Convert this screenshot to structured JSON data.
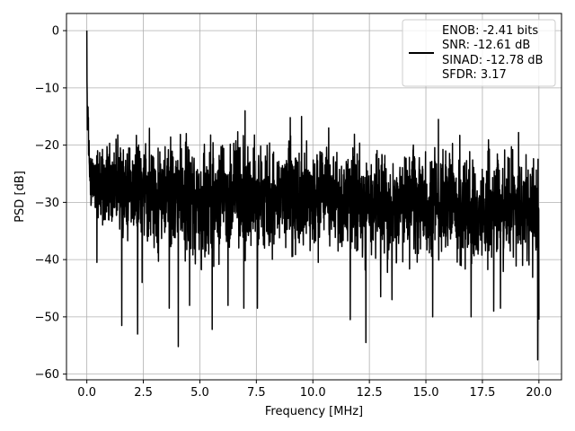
{
  "chart_data": {
    "type": "line",
    "xlabel": "Frequency [MHz]",
    "ylabel": "PSD [dB]",
    "xlim": [
      -0.9,
      21.0
    ],
    "ylim": [
      -61.0,
      3.0
    ],
    "xticks": [
      0.0,
      2.5,
      5.0,
      7.5,
      10.0,
      12.5,
      15.0,
      17.5,
      20.0
    ],
    "xtick_labels": [
      "0.0",
      "2.5",
      "5.0",
      "7.5",
      "10.0",
      "12.5",
      "15.0",
      "17.5",
      "20.0"
    ],
    "yticks": [
      0,
      -10,
      -20,
      -30,
      -40,
      -50,
      -60
    ],
    "ytick_labels": [
      "0",
      "−10",
      "−20",
      "−30",
      "−40",
      "−50",
      "−60"
    ],
    "grid": true,
    "legend_position": "top-right",
    "series": [
      {
        "color": "#000000",
        "x": [
          0.0,
          0.02,
          0.05,
          0.08,
          0.12,
          0.2,
          0.35,
          0.5,
          1.0,
          1.5,
          2.0,
          2.3,
          2.5,
          3.0,
          3.5,
          3.7,
          4.0,
          4.5,
          5.0,
          5.5,
          6.0,
          6.5,
          7.0,
          7.5,
          8.0,
          8.5,
          9.0,
          9.5,
          10.0,
          10.5,
          11.0,
          11.5,
          12.0,
          12.3,
          12.5,
          13.0,
          13.5,
          14.0,
          14.5,
          15.0,
          15.3,
          15.5,
          16.0,
          16.5,
          17.0,
          17.5,
          18.0,
          18.5,
          19.0,
          19.5,
          19.95,
          20.0
        ],
        "upper": [
          0.0,
          -4.0,
          -10.0,
          -14.0,
          -17.0,
          -18.0,
          -19.0,
          -17.5,
          -16.0,
          -16.5,
          -17.0,
          -16.0,
          -17.0,
          -15.5,
          -17.0,
          -16.0,
          -17.5,
          -16.0,
          -17.0,
          -16.0,
          -17.0,
          -16.5,
          -17.0,
          -16.0,
          -17.5,
          -14.0,
          -17.0,
          -17.5,
          -17.0,
          -16.0,
          -19.0,
          -18.0,
          -17.0,
          -18.0,
          -18.5,
          -19.0,
          -19.0,
          -18.0,
          -17.0,
          -18.0,
          -19.5,
          -15.5,
          -19.0,
          -18.0,
          -19.5,
          -18.5,
          -18.0,
          -19.0,
          -18.0,
          -19.0,
          -19.5,
          -22.0
        ],
        "lower": [
          -10.0,
          -25.0,
          -22.0,
          -27.0,
          -30.0,
          -34.0,
          -32.0,
          -36.0,
          -37.0,
          -38.0,
          -40.0,
          -41.0,
          -40.0,
          -41.0,
          -40.0,
          -40.0,
          -42.0,
          -41.0,
          -44.0,
          -42.0,
          -41.0,
          -41.0,
          -42.0,
          -42.0,
          -43.0,
          -41.0,
          -42.0,
          -41.0,
          -41.0,
          -41.0,
          -42.0,
          -43.0,
          -42.0,
          -43.0,
          -42.0,
          -43.0,
          -43.0,
          -44.0,
          -42.0,
          -43.0,
          -42.0,
          -43.0,
          -43.0,
          -43.0,
          -44.0,
          -44.0,
          -43.0,
          -44.0,
          -44.0,
          -43.0,
          -45.0,
          -35.0
        ],
        "spikes_down": [
          [
            0.45,
            -40.5
          ],
          [
            1.55,
            -51.5
          ],
          [
            2.25,
            -53.0
          ],
          [
            2.45,
            -44.0
          ],
          [
            3.65,
            -48.5
          ],
          [
            4.05,
            -55.2
          ],
          [
            4.55,
            -48.0
          ],
          [
            5.55,
            -52.2
          ],
          [
            6.25,
            -48.0
          ],
          [
            6.95,
            -48.5
          ],
          [
            7.55,
            -48.5
          ],
          [
            9.5,
            -47.5
          ],
          [
            11.65,
            -50.5
          ],
          [
            12.35,
            -54.5
          ],
          [
            13.0,
            -46.5
          ],
          [
            13.5,
            -47.0
          ],
          [
            15.3,
            -50.0
          ],
          [
            17.0,
            -50.0
          ],
          [
            18.0,
            -49.0
          ],
          [
            18.3,
            -48.5
          ],
          [
            19.95,
            -57.5
          ],
          [
            20.0,
            -50.5
          ]
        ],
        "spikes_up": [
          [
            7.0,
            -14.0
          ],
          [
            9.0,
            -15.2
          ],
          [
            9.5,
            -15.0
          ],
          [
            10.7,
            -17.0
          ],
          [
            15.55,
            -15.5
          ],
          [
            19.1,
            -17.8
          ]
        ]
      }
    ],
    "legend": {
      "entries": [
        "ENOB: -2.41 bits",
        "SNR: -12.61 dB",
        "SINAD: -12.78 dB",
        "SFDR: 3.17"
      ]
    }
  }
}
